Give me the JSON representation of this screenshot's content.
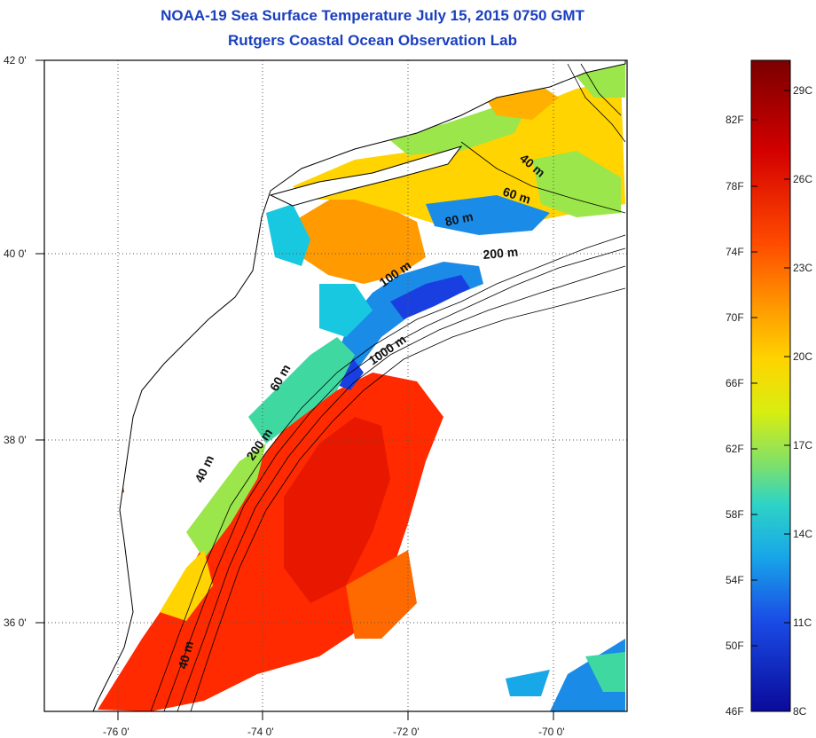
{
  "header": {
    "title_line1": "NOAA-19 Sea Surface Temperature July 15, 2015 0750 GMT",
    "title_line2": "Rutgers Coastal Ocean Observation Lab"
  },
  "map": {
    "lat_labels": [
      "42 0'",
      "40 0'",
      "38 0'",
      "36 0'"
    ],
    "lon_labels": [
      "-76 0'",
      "-74 0'",
      "-72 0'",
      "-70 0'"
    ],
    "contour_labels": [
      "40 m",
      "60 m",
      "80 m",
      "200 m",
      "100 m",
      "1000 m",
      "60 m",
      "200 m",
      "40 m",
      "40 m"
    ]
  },
  "colorbar": {
    "f_labels": [
      "82F",
      "78F",
      "74F",
      "70F",
      "66F",
      "62F",
      "58F",
      "54F",
      "50F",
      "46F"
    ],
    "c_labels": [
      "29C",
      "26C",
      "23C",
      "20C",
      "17C",
      "14C",
      "11C",
      "8C"
    ],
    "colors": [
      "#7a0000",
      "#d40000",
      "#ff4a00",
      "#ff9a00",
      "#ffd400",
      "#e8f000",
      "#9be64a",
      "#3fd8a0",
      "#18c8e0",
      "#1a8ce8",
      "#1a3fe0",
      "#0a0a9a"
    ]
  }
}
